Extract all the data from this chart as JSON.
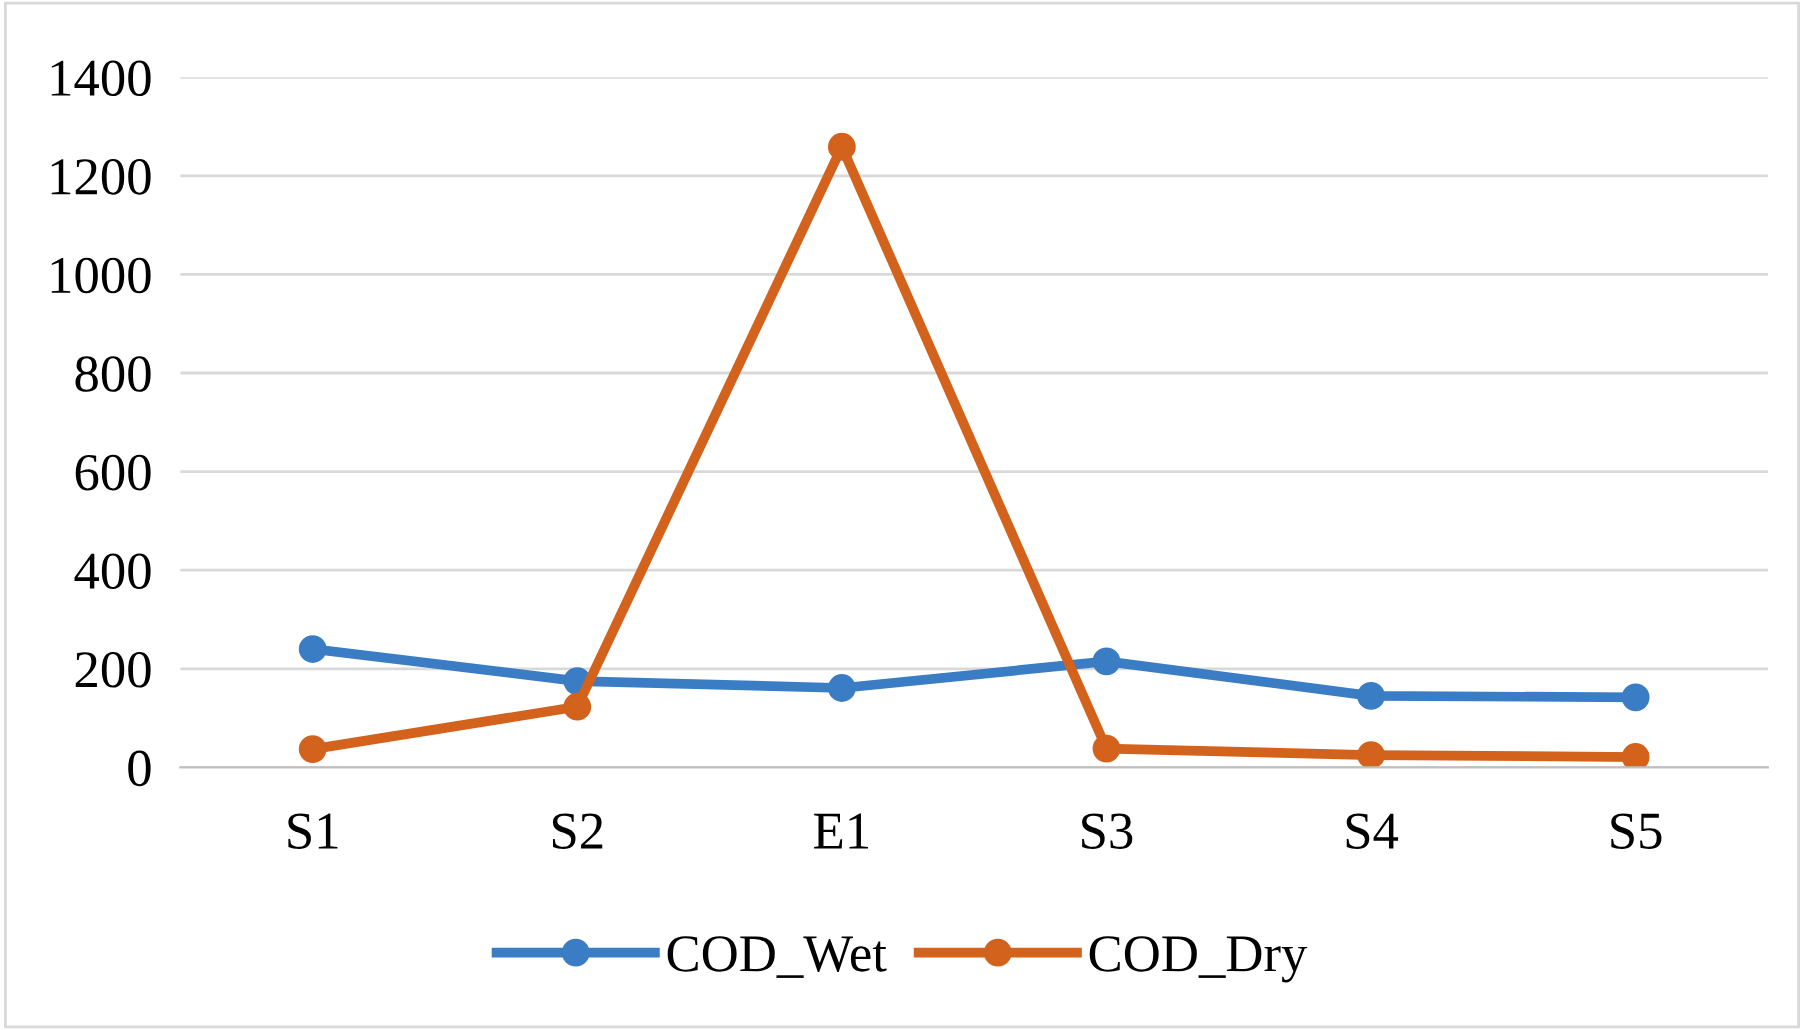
{
  "chart_data": {
    "type": "line",
    "categories": [
      "S1",
      "S2",
      "E1",
      "S3",
      "S4",
      "S5"
    ],
    "series": [
      {
        "name": "COD_Wet",
        "color": "#3b7dc4",
        "values": [
          240,
          175,
          161,
          215,
          145,
          142
        ]
      },
      {
        "name": "COD_Dry",
        "color": "#d2621c",
        "values": [
          37,
          123,
          1259,
          38,
          25,
          21
        ]
      }
    ],
    "ylim": [
      0,
      1400
    ],
    "yticks": [
      0,
      200,
      400,
      600,
      800,
      1000,
      1200,
      1400
    ],
    "grid": "y",
    "legend": "bottom",
    "marker": "circle",
    "line_style": "solid"
  }
}
